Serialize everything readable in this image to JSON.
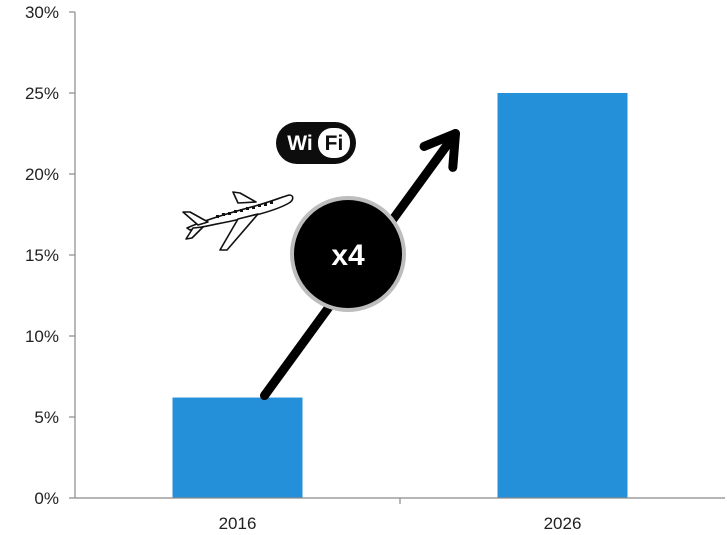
{
  "chart_data": {
    "type": "bar",
    "categories": [
      "2016",
      "2026"
    ],
    "values": [
      6.2,
      25
    ],
    "ylim": [
      0,
      30
    ],
    "yticks": [
      0,
      5,
      10,
      15,
      20,
      25,
      30
    ],
    "ytick_format": "{v}%",
    "bar_color": "#2390d9",
    "grid": false,
    "annotation": {
      "label": "x4",
      "arrow_from": {
        "category": "2016",
        "value": 6.2
      },
      "arrow_to": {
        "category": "2026",
        "value": 22.5
      }
    }
  },
  "icons": {
    "wifi": {
      "name": "wifi-icon",
      "text_wi": "Wi",
      "text_fi": "Fi"
    },
    "plane": {
      "name": "airplane-icon"
    }
  }
}
